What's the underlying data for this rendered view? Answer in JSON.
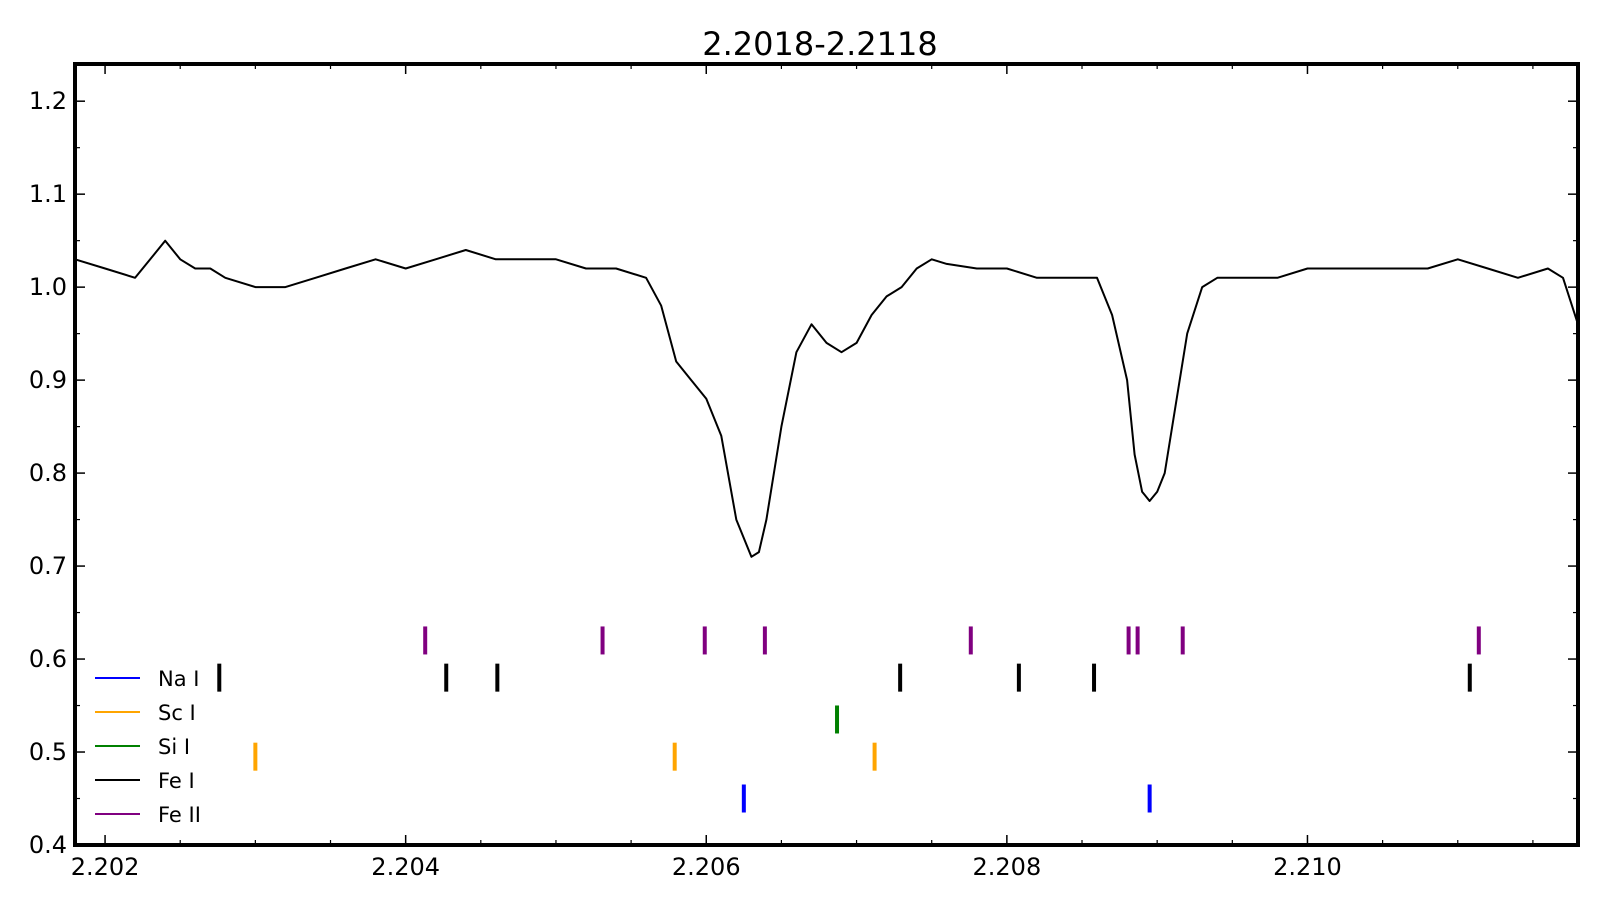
{
  "chart_data": {
    "type": "line",
    "title": "2.2018-2.2118",
    "xlabel": "",
    "ylabel": "",
    "xlim": [
      2.2018,
      2.2118
    ],
    "ylim": [
      0.4,
      1.24
    ],
    "xticks": [
      2.202,
      2.204,
      2.206,
      2.208,
      2.21
    ],
    "xtick_labels": [
      "2.202",
      "2.204",
      "2.206",
      "2.208",
      "2.210"
    ],
    "yticks": [
      0.4,
      0.5,
      0.6,
      0.7,
      0.8,
      0.9,
      1.0,
      1.1,
      1.2
    ],
    "ytick_labels": [
      "0.4",
      "0.5",
      "0.6",
      "0.7",
      "0.8",
      "0.9",
      "1.0",
      "1.1",
      "1.2"
    ],
    "grid": false,
    "legend_position": "lower-left",
    "series": [
      {
        "color": "#000000",
        "x": [
          2.2018,
          2.202,
          2.2022,
          2.2023,
          2.2024,
          2.2025,
          2.2026,
          2.2027,
          2.2028,
          2.203,
          2.2032,
          2.2034,
          2.2036,
          2.2038,
          2.204,
          2.2042,
          2.2044,
          2.2046,
          2.2048,
          2.205,
          2.2052,
          2.2054,
          2.2056,
          2.2057,
          2.2058,
          2.2059,
          2.206,
          2.2061,
          2.2062,
          2.2063,
          2.20635,
          2.2064,
          2.2065,
          2.2066,
          2.2067,
          2.2068,
          2.2069,
          2.207,
          2.2071,
          2.2072,
          2.2073,
          2.2074,
          2.2075,
          2.2076,
          2.2078,
          2.208,
          2.2082,
          2.2084,
          2.2086,
          2.2087,
          2.2088,
          2.20885,
          2.2089,
          2.20895,
          2.209,
          2.20905,
          2.2091,
          2.2092,
          2.2093,
          2.2094,
          2.2096,
          2.2098,
          2.21,
          2.2102,
          2.2104,
          2.2106,
          2.2108,
          2.211,
          2.2112,
          2.2114,
          2.2116,
          2.2117,
          2.2118
        ],
        "y": [
          1.03,
          1.02,
          1.01,
          1.03,
          1.05,
          1.03,
          1.02,
          1.02,
          1.01,
          1.0,
          1.0,
          1.01,
          1.02,
          1.03,
          1.02,
          1.03,
          1.04,
          1.03,
          1.03,
          1.03,
          1.02,
          1.02,
          1.01,
          0.98,
          0.92,
          0.9,
          0.88,
          0.84,
          0.75,
          0.71,
          0.715,
          0.75,
          0.85,
          0.93,
          0.96,
          0.94,
          0.93,
          0.94,
          0.97,
          0.99,
          1.0,
          1.02,
          1.03,
          1.025,
          1.02,
          1.02,
          1.01,
          1.01,
          1.01,
          0.97,
          0.9,
          0.82,
          0.78,
          0.77,
          0.78,
          0.8,
          0.85,
          0.95,
          1.0,
          1.01,
          1.01,
          1.01,
          1.02,
          1.02,
          1.02,
          1.02,
          1.02,
          1.03,
          1.02,
          1.01,
          1.02,
          1.01,
          0.96
        ]
      }
    ],
    "line_markers": [
      {
        "name": "Na I",
        "color": "#0000ff",
        "y": 0.45,
        "x": [
          2.20625,
          2.20895
        ]
      },
      {
        "name": "Sc I",
        "color": "#ffa500",
        "y": 0.495,
        "x": [
          2.203,
          2.20579,
          2.20712
        ]
      },
      {
        "name": "Si I",
        "color": "#008000",
        "y": 0.535,
        "x": [
          2.20687
        ]
      },
      {
        "name": "Fe I",
        "color": "#000000",
        "y": 0.58,
        "x": [
          2.20276,
          2.20427,
          2.20461,
          2.20729,
          2.20808,
          2.20858,
          2.21108
        ]
      },
      {
        "name": "Fe II",
        "color": "#800080",
        "y": 0.62,
        "x": [
          2.20413,
          2.20531,
          2.20599,
          2.20639,
          2.20776,
          2.20881,
          2.20887,
          2.20917,
          2.21114
        ]
      }
    ]
  }
}
